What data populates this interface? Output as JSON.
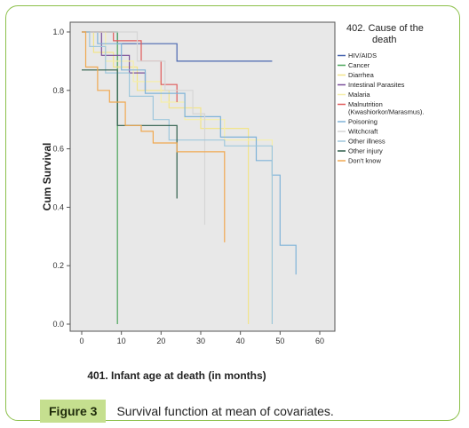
{
  "chart_data": {
    "type": "line",
    "ylabel": "Cum Survival",
    "xlabel": "401. Infant age at death (in months)",
    "xlim": [
      0,
      60
    ],
    "ylim": [
      0,
      1
    ],
    "xticks": [
      0,
      10,
      20,
      30,
      40,
      50,
      60
    ],
    "yticks": [
      0.0,
      0.2,
      0.4,
      0.6,
      0.8,
      1.0
    ],
    "grid": false,
    "legend_title": [
      "402. Cause of the",
      "death"
    ],
    "legend_position": "right",
    "series": [
      {
        "name": "HIV/AIDS",
        "color": "#4a67b0",
        "points": [
          [
            0,
            1.0
          ],
          [
            9,
            1.0
          ],
          [
            9,
            0.96
          ],
          [
            24,
            0.96
          ],
          [
            24,
            0.9
          ],
          [
            48,
            0.9
          ]
        ]
      },
      {
        "name": "Cancer",
        "color": "#4aa55a",
        "points": [
          [
            0,
            1.0
          ],
          [
            9,
            1.0
          ],
          [
            9,
            0.0
          ]
        ]
      },
      {
        "name": "Diarrhea",
        "color": "#f2e48a",
        "points": [
          [
            0,
            1.0
          ],
          [
            3,
            1.0
          ],
          [
            3,
            0.93
          ],
          [
            8,
            0.93
          ],
          [
            8,
            0.88
          ],
          [
            14,
            0.88
          ],
          [
            14,
            0.8
          ],
          [
            22,
            0.8
          ],
          [
            22,
            0.74
          ],
          [
            30,
            0.74
          ],
          [
            30,
            0.67
          ],
          [
            42,
            0.67
          ],
          [
            42,
            0.0
          ]
        ]
      },
      {
        "name": "Intestinal Parasites",
        "color": "#7a4f9a",
        "points": [
          [
            0,
            1.0
          ],
          [
            5,
            1.0
          ],
          [
            5,
            0.92
          ],
          [
            12,
            0.92
          ],
          [
            12,
            0.86
          ],
          [
            16,
            0.86
          ],
          [
            16,
            0.8
          ]
        ]
      },
      {
        "name": "Malaria",
        "color": "#f5eeaa",
        "points": [
          [
            0,
            1.0
          ],
          [
            6,
            1.0
          ],
          [
            6,
            0.9
          ],
          [
            13,
            0.9
          ],
          [
            13,
            0.83
          ],
          [
            20,
            0.83
          ],
          [
            20,
            0.76
          ],
          [
            26,
            0.76
          ],
          [
            26,
            0.7
          ],
          [
            36,
            0.7
          ],
          [
            36,
            0.63
          ],
          [
            48,
            0.63
          ],
          [
            48,
            0.0
          ]
        ]
      },
      {
        "name": "Malnutrition (Kwashiorkor/Marasmus).",
        "color": "#e05a5a",
        "points": [
          [
            0,
            1.0
          ],
          [
            8,
            1.0
          ],
          [
            8,
            0.97
          ],
          [
            15,
            0.97
          ],
          [
            15,
            0.9
          ],
          [
            20,
            0.9
          ],
          [
            20,
            0.82
          ],
          [
            24,
            0.82
          ],
          [
            24,
            0.76
          ]
        ]
      },
      {
        "name": "Poisoning",
        "color": "#7fb3d8",
        "points": [
          [
            0,
            1.0
          ],
          [
            4,
            1.0
          ],
          [
            4,
            0.96
          ],
          [
            10,
            0.96
          ],
          [
            10,
            0.87
          ],
          [
            16,
            0.87
          ],
          [
            16,
            0.79
          ],
          [
            26,
            0.79
          ],
          [
            26,
            0.71
          ],
          [
            35,
            0.71
          ],
          [
            35,
            0.64
          ],
          [
            44,
            0.64
          ],
          [
            44,
            0.56
          ],
          [
            48,
            0.56
          ],
          [
            48,
            0.51
          ],
          [
            50,
            0.51
          ],
          [
            50,
            0.27
          ],
          [
            54,
            0.27
          ],
          [
            54,
            0.17
          ]
        ]
      },
      {
        "name": "Witchcraft",
        "color": "#d6d6d6",
        "points": [
          [
            0,
            1.0
          ],
          [
            14,
            1.0
          ],
          [
            14,
            0.9
          ],
          [
            21,
            0.9
          ],
          [
            21,
            0.8
          ],
          [
            28,
            0.8
          ],
          [
            28,
            0.72
          ],
          [
            31,
            0.72
          ],
          [
            31,
            0.34
          ]
        ]
      },
      {
        "name": "Other illness",
        "color": "#9fc7dc",
        "points": [
          [
            0,
            1.0
          ],
          [
            2,
            1.0
          ],
          [
            2,
            0.95
          ],
          [
            6,
            0.95
          ],
          [
            6,
            0.86
          ],
          [
            12,
            0.86
          ],
          [
            12,
            0.78
          ],
          [
            18,
            0.78
          ],
          [
            18,
            0.7
          ],
          [
            22,
            0.7
          ],
          [
            22,
            0.63
          ],
          [
            36,
            0.63
          ],
          [
            36,
            0.61
          ],
          [
            48,
            0.61
          ],
          [
            48,
            0.0
          ]
        ]
      },
      {
        "name": "Other injury",
        "color": "#2e5e4a",
        "points": [
          [
            0,
            0.87
          ],
          [
            9,
            0.87
          ],
          [
            9,
            0.68
          ],
          [
            24,
            0.68
          ],
          [
            24,
            0.43
          ]
        ]
      },
      {
        "name": "Don't know",
        "color": "#f0a850",
        "points": [
          [
            0,
            1.0
          ],
          [
            1,
            1.0
          ],
          [
            1,
            0.88
          ],
          [
            4,
            0.88
          ],
          [
            4,
            0.8
          ],
          [
            7,
            0.8
          ],
          [
            7,
            0.76
          ],
          [
            11,
            0.76
          ],
          [
            11,
            0.68
          ],
          [
            15,
            0.68
          ],
          [
            15,
            0.66
          ],
          [
            18,
            0.66
          ],
          [
            18,
            0.62
          ],
          [
            24,
            0.62
          ],
          [
            24,
            0.59
          ],
          [
            36,
            0.59
          ],
          [
            36,
            0.28
          ]
        ]
      }
    ]
  },
  "caption": {
    "label": "Figure 3",
    "text": "Survival function at mean of covariates."
  }
}
